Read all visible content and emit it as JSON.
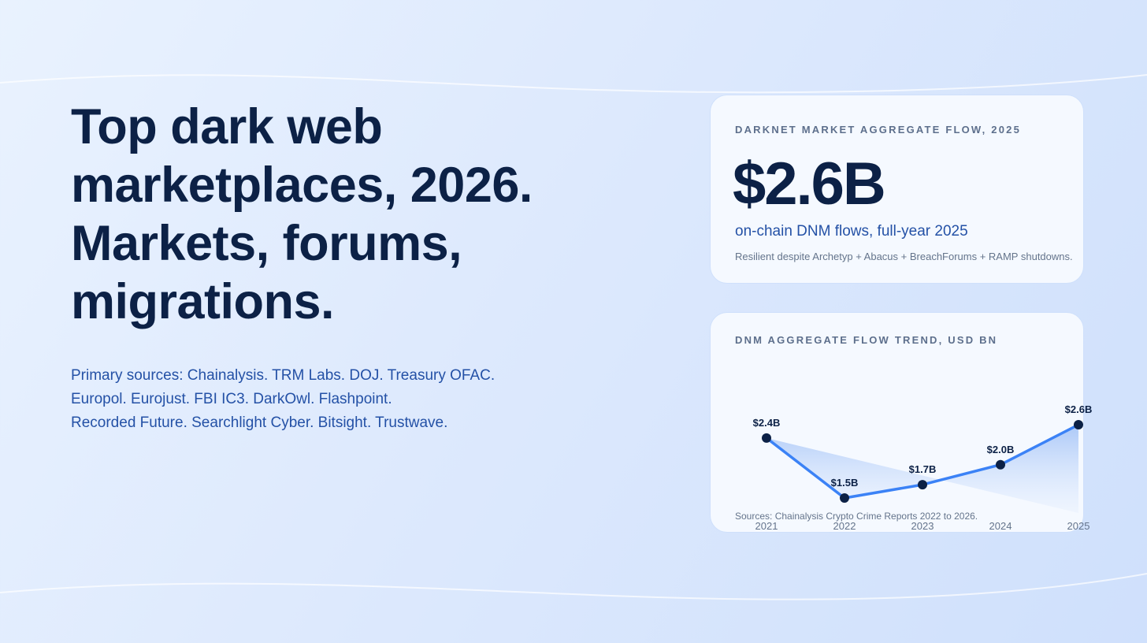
{
  "hero": {
    "headline_lines": [
      "Top dark web",
      "marketplaces, 2026.",
      "Markets, forums,",
      "migrations."
    ],
    "sources_lines": [
      "Primary sources: Chainalysis. TRM Labs. DOJ. Treasury OFAC.",
      "Europol. Eurojust. FBI IC3. DarkOwl. Flashpoint.",
      "Recorded Future. Searchlight Cyber. Bitsight. Trustwave."
    ]
  },
  "stat_card": {
    "eyebrow": "DARKNET MARKET AGGREGATE FLOW, 2025",
    "value": "$2.6B",
    "subtitle": "on-chain DNM flows, full-year 2025",
    "note": "Resilient despite Archetyp + Abacus + BreachForums + RAMP shutdowns."
  },
  "chart_card": {
    "eyebrow": "DNM AGGREGATE FLOW TREND, USD BN",
    "source": "Sources: Chainalysis Crypto Crime Reports 2022 to 2026.",
    "years": [
      "2021",
      "2022",
      "2023",
      "2024",
      "2025"
    ],
    "point_labels": [
      "$2.4B",
      "$1.5B",
      "$1.7B",
      "$2.0B",
      "$2.6B"
    ]
  },
  "colors": {
    "navy": "#0c2146",
    "accent_blue": "#2451a6",
    "line_blue": "#3b82f6",
    "muted": "#64748b"
  },
  "chart_data": {
    "type": "line",
    "title": "DNM AGGREGATE FLOW TREND, USD BN",
    "categories": [
      "2021",
      "2022",
      "2023",
      "2024",
      "2025"
    ],
    "x": [
      2021,
      2022,
      2023,
      2024,
      2025
    ],
    "values": [
      2.4,
      1.5,
      1.7,
      2.0,
      2.6
    ],
    "data_labels": [
      "$2.4B",
      "$1.5B",
      "$1.7B",
      "$2.0B",
      "$2.6B"
    ],
    "xlabel": "",
    "ylabel": "USD BN",
    "grid": false,
    "legend": null,
    "annotation": "Sources: Chainalysis Crypto Crime Reports 2022 to 2026."
  }
}
